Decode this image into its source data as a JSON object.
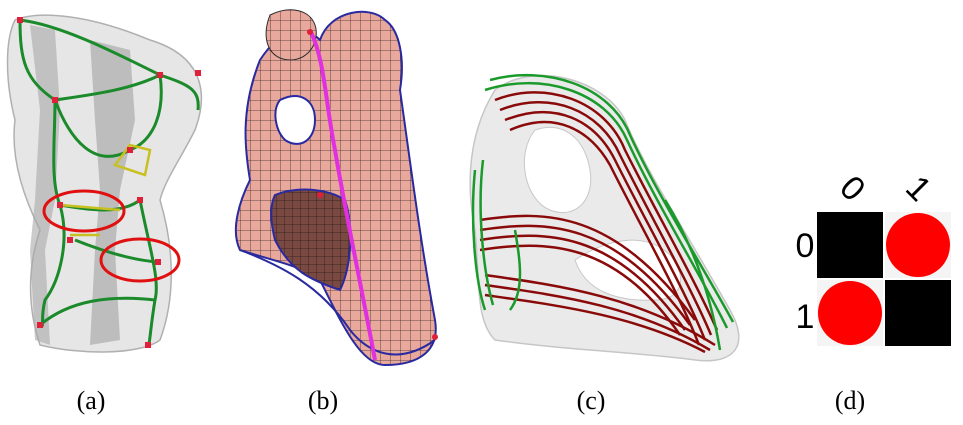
{
  "figure": {
    "panels": [
      {
        "id": "a",
        "caption": "(a)",
        "content": "translucent-mesh-with-green-curves-and-red-highlight-ellipses"
      },
      {
        "id": "b",
        "caption": "(b)",
        "content": "hex-mesh-surface-pink-with-magenta-curve"
      },
      {
        "id": "c",
        "caption": "(c)",
        "content": "translucent-shape-with-red-and-green-streamlines"
      },
      {
        "id": "d",
        "caption": "(d)",
        "content": "two-by-two-matrix"
      }
    ],
    "matrix": {
      "col_labels": [
        "0",
        "1"
      ],
      "row_labels": [
        "0",
        "1"
      ],
      "cells": [
        [
          "black-square",
          "red-circle"
        ],
        [
          "red-circle",
          "black-square"
        ]
      ]
    },
    "colors": {
      "mesh_gray": "#c8c8c8",
      "curve_green": "#1a8a2a",
      "highlight_red": "#e01010",
      "marker_red": "#e0203a",
      "pink_surface": "#e8a89c",
      "magenta": "#e030e0",
      "dark_red": "#8a0a0a",
      "black": "#000000",
      "red": "#ff0000"
    }
  }
}
